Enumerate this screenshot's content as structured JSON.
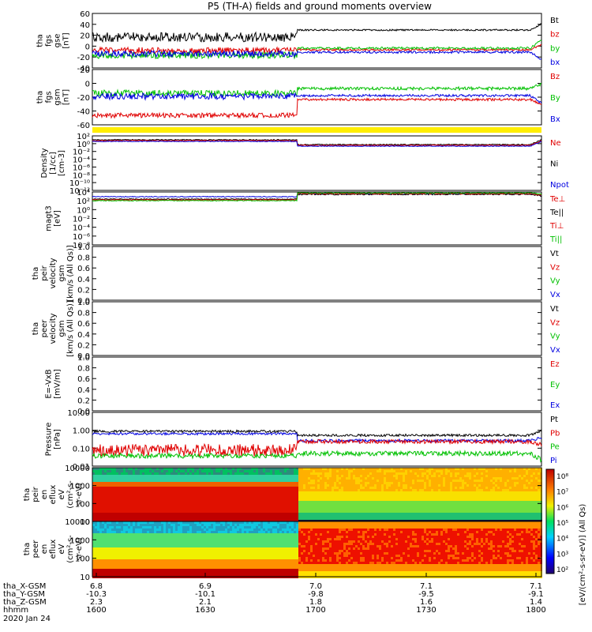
{
  "title": "P5 (TH-A) fields and ground moments overview",
  "chart_data": {
    "type": "line",
    "title": "P5 (TH-A) fields and ground moments overview",
    "time_axis": {
      "rows": [
        {
          "label": "tha_X-GSM",
          "values": [
            "6.8",
            "6.9",
            "7.0",
            "7.1",
            "7.1"
          ]
        },
        {
          "label": "tha_Y-GSM",
          "values": [
            "-10.3",
            "-10.1",
            "-9.8",
            "-9.5",
            "-9.1"
          ]
        },
        {
          "label": "tha_Z-GSM",
          "values": [
            "2.3",
            "2.1",
            "1.8",
            "1.6",
            "1.4"
          ]
        },
        {
          "label": "hhmm",
          "values": [
            "1600",
            "1630",
            "1700",
            "1730",
            "1800"
          ]
        }
      ],
      "date": "2020 Jan 24"
    },
    "panels": [
      {
        "ylabel": [
          "tha",
          "fgs",
          "gse",
          "[nT]"
        ],
        "ticks": [
          "60",
          "40",
          "20",
          "0",
          "-20",
          "-40"
        ],
        "range": [
          -40,
          60
        ],
        "legend": [
          {
            "name": "Bt",
            "color": "#000000"
          },
          {
            "name": "bz",
            "color": "#e00000"
          },
          {
            "name": "by",
            "color": "#00c000"
          },
          {
            "name": "bx",
            "color": "#0000e0"
          }
        ]
      },
      {
        "ylabel": [
          "tha",
          "fgs",
          "gsm",
          "[nT]"
        ],
        "ticks": [
          "20",
          "0",
          "-20",
          "-40",
          "-60"
        ],
        "range": [
          -70,
          25
        ],
        "legend": [
          {
            "name": "Bz",
            "color": "#e00000"
          },
          {
            "name": "By",
            "color": "#00c000"
          },
          {
            "name": "Bx",
            "color": "#0000e0"
          }
        ]
      },
      {
        "ylabel": [
          "Density",
          "[1/cc]",
          "[cm-3]"
        ],
        "ticks": [
          "10²",
          "10⁰",
          "10⁻²",
          "10⁻⁴",
          "10⁻⁶",
          "10⁻⁸",
          "10⁻¹⁰",
          "10⁻¹²"
        ],
        "scale": "log",
        "legend": [
          {
            "name": "Ne",
            "color": "#e00000"
          },
          {
            "name": "Ni",
            "color": "#000000"
          },
          {
            "name": "Npot",
            "color": "#0000e0"
          }
        ]
      },
      {
        "ylabel": [
          "magt3",
          "[eV]"
        ],
        "ticks": [
          "10⁴",
          "10²",
          "10⁰",
          "10⁻²",
          "10⁻⁴",
          "10⁻⁶",
          "10⁻⁸"
        ],
        "scale": "log",
        "legend": [
          {
            "name": "Te⊥",
            "color": "#e00000"
          },
          {
            "name": "Te||",
            "color": "#000000"
          },
          {
            "name": "Ti⊥",
            "color": "#e00000"
          },
          {
            "name": "Ti||",
            "color": "#00c000"
          }
        ]
      },
      {
        "ylabel": [
          "tha",
          "peir",
          "velocity",
          "gsm",
          "[km/s (All Qs)]"
        ],
        "ticks": [
          "1.0",
          "0.8",
          "0.6",
          "0.4",
          "0.2",
          "0.0"
        ],
        "range": [
          0,
          1
        ],
        "legend": [
          {
            "name": "Vt",
            "color": "#000000"
          },
          {
            "name": "Vz",
            "color": "#e00000"
          },
          {
            "name": "Vy",
            "color": "#00c000"
          },
          {
            "name": "Vx",
            "color": "#0000e0"
          }
        ]
      },
      {
        "ylabel": [
          "tha",
          "peer",
          "velocity",
          "gsm",
          "[km/s (All Qs)]"
        ],
        "ticks": [
          "1.0",
          "0.8",
          "0.6",
          "0.4",
          "0.2",
          "0.0"
        ],
        "range": [
          0,
          1
        ],
        "legend": [
          {
            "name": "Vt",
            "color": "#000000"
          },
          {
            "name": "Vz",
            "color": "#e00000"
          },
          {
            "name": "Vy",
            "color": "#00c000"
          },
          {
            "name": "Vx",
            "color": "#0000e0"
          }
        ]
      },
      {
        "ylabel": [
          "E=-VxB",
          "[mV/m]"
        ],
        "ticks": [
          "1.0",
          "0.8",
          "0.6",
          "0.4",
          "0.2",
          "0.0"
        ],
        "range": [
          0,
          1
        ],
        "legend": [
          {
            "name": "Ez",
            "color": "#e00000"
          },
          {
            "name": "Ey",
            "color": "#00c000"
          },
          {
            "name": "Ex",
            "color": "#0000e0"
          }
        ]
      },
      {
        "ylabel": [
          "Pressure",
          "[nPa]"
        ],
        "ticks": [
          "10.00",
          "1.00",
          "0.10",
          "0.01"
        ],
        "scale": "log",
        "legend": [
          {
            "name": "Pt",
            "color": "#000000"
          },
          {
            "name": "Pb",
            "color": "#e00000"
          },
          {
            "name": "Pe",
            "color": "#00c000"
          },
          {
            "name": "Pi",
            "color": "#0000e0"
          }
        ]
      },
      {
        "ylabel": [
          "tha",
          "peir",
          "en",
          "eflux",
          "eV",
          "(cm²-s-",
          "sr-eV)"
        ],
        "ticks": [
          "10000",
          "1000",
          "100",
          "10"
        ],
        "scale": "log",
        "type": "spectrogram"
      },
      {
        "ylabel": [
          "tha",
          "peer",
          "en",
          "eflux",
          "eV",
          "(cm²-s-",
          "sr-eV)"
        ],
        "ticks": [
          "10000",
          "1000",
          "100",
          "10"
        ],
        "scale": "log",
        "type": "spectrogram"
      }
    ],
    "colorbar": {
      "label": "[eV/(cm²-s-sr-eV)] (All Qs)",
      "ticks": [
        "10⁸",
        "10⁷",
        "10⁶",
        "10⁵",
        "10⁴",
        "10³",
        "10²"
      ]
    }
  }
}
